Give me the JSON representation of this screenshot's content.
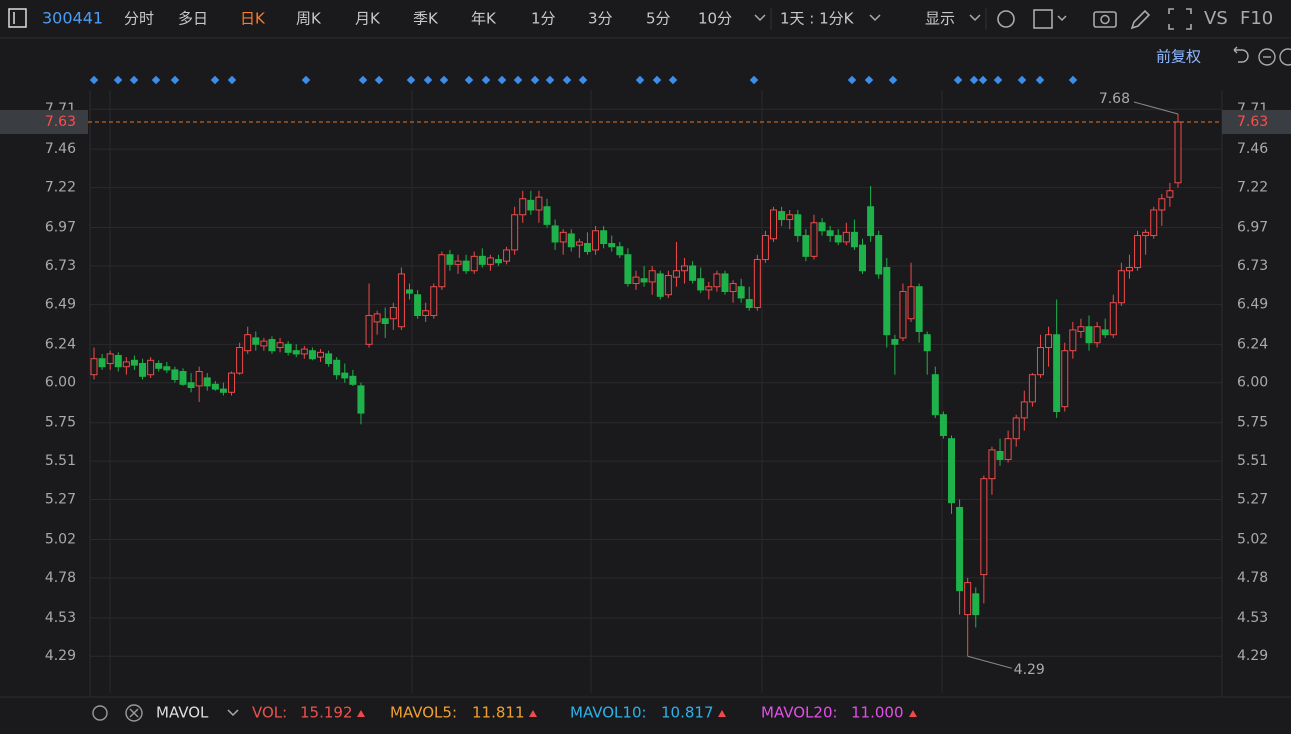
{
  "toolbar": {
    "code": "300441",
    "tabs": [
      "分时",
      "多日",
      "日K",
      "周K",
      "月K",
      "季K",
      "年K",
      "1分",
      "3分",
      "5分",
      "10分"
    ],
    "active": 2,
    "period": "1天 : 1分K",
    "display": "显示",
    "vs": "VS",
    "f10": "F10",
    "adjust": "前复权"
  },
  "chart_data": {
    "type": "candlestick",
    "up_color": "#f04a4a",
    "down_color": "#1fb24a",
    "open": [
      6.05,
      6.15,
      6.12,
      6.17,
      6.1,
      6.14,
      6.12,
      6.05,
      6.12,
      6.1,
      6.08,
      6.07,
      6.0,
      5.98,
      6.03,
      5.99,
      5.96,
      5.94,
      6.06,
      6.2,
      6.28,
      6.23,
      6.27,
      6.22,
      6.24,
      6.2,
      6.18,
      6.2,
      6.16,
      6.18,
      6.14,
      6.06,
      6.04,
      5.98,
      6.24,
      6.38,
      6.4,
      6.4,
      6.35,
      6.58,
      6.55,
      6.42,
      6.42,
      6.6,
      6.8,
      6.74,
      6.76,
      6.7,
      6.79,
      6.74,
      6.77,
      6.76,
      6.83,
      7.05,
      7.14,
      7.08,
      7.1,
      6.98,
      6.88,
      6.93,
      6.86,
      6.87,
      6.83,
      6.95,
      6.87,
      6.85,
      6.8,
      6.62,
      6.65,
      6.63,
      6.68,
      6.55,
      6.66,
      6.7,
      6.73,
      6.65,
      6.58,
      6.6,
      6.68,
      6.57,
      6.6,
      6.52,
      6.47,
      6.77,
      6.9,
      7.07,
      7.02,
      7.05,
      6.92,
      6.79,
      7.0,
      6.95,
      6.92,
      6.88,
      6.94,
      6.86,
      7.1,
      6.92,
      6.72,
      6.27,
      6.28,
      6.4,
      6.6,
      6.3,
      6.05,
      5.8,
      5.65,
      5.22,
      4.55,
      4.68,
      4.8,
      5.4,
      5.57,
      5.52,
      5.65,
      5.78,
      5.88,
      6.05,
      6.22,
      6.3,
      5.85,
      6.2,
      6.32,
      6.35,
      6.25,
      6.33,
      6.3,
      6.5,
      6.7,
      6.72,
      6.92,
      6.92,
      7.08,
      7.16,
      7.25
    ],
    "high": [
      6.22,
      6.18,
      6.2,
      6.19,
      6.16,
      6.17,
      6.15,
      6.16,
      6.14,
      6.13,
      6.1,
      6.09,
      6.06,
      6.1,
      6.06,
      6.01,
      6.0,
      6.07,
      6.25,
      6.35,
      6.32,
      6.28,
      6.29,
      6.28,
      6.26,
      6.24,
      6.23,
      6.22,
      6.21,
      6.2,
      6.16,
      6.12,
      6.08,
      6.0,
      6.62,
      6.45,
      6.47,
      6.5,
      6.72,
      6.62,
      6.58,
      6.5,
      6.62,
      6.82,
      6.83,
      6.8,
      6.8,
      6.82,
      6.84,
      6.8,
      6.8,
      6.85,
      7.1,
      7.2,
      7.2,
      7.2,
      7.15,
      7.02,
      6.96,
      6.96,
      6.9,
      6.94,
      6.98,
      6.98,
      6.92,
      6.88,
      6.84,
      6.7,
      6.73,
      6.73,
      6.7,
      6.7,
      6.88,
      6.78,
      6.76,
      6.72,
      6.63,
      6.7,
      6.7,
      6.64,
      6.65,
      6.6,
      6.8,
      6.95,
      7.1,
      7.1,
      7.08,
      7.08,
      6.96,
      7.05,
      7.03,
      6.98,
      6.96,
      7.0,
      7.02,
      6.9,
      7.23,
      6.95,
      6.78,
      6.3,
      6.62,
      6.75,
      6.62,
      6.32,
      6.1,
      5.82,
      5.67,
      5.27,
      4.78,
      4.72,
      5.42,
      5.6,
      5.65,
      5.7,
      5.8,
      5.95,
      6.06,
      6.3,
      6.35,
      6.52,
      6.25,
      6.38,
      6.4,
      6.42,
      6.38,
      6.4,
      6.55,
      6.75,
      6.8,
      6.95,
      6.96,
      7.1,
      7.18,
      7.25,
      7.68
    ],
    "low": [
      6.02,
      6.08,
      6.08,
      6.07,
      6.05,
      6.08,
      6.02,
      6.03,
      6.07,
      6.06,
      6.0,
      5.98,
      5.94,
      5.88,
      5.95,
      5.95,
      5.92,
      5.92,
      6.05,
      6.18,
      6.2,
      6.2,
      6.18,
      6.19,
      6.17,
      6.16,
      6.15,
      6.14,
      6.13,
      6.1,
      6.02,
      6.0,
      5.98,
      5.74,
      6.22,
      6.3,
      6.28,
      6.33,
      6.33,
      6.52,
      6.4,
      6.38,
      6.4,
      6.58,
      6.7,
      6.68,
      6.68,
      6.68,
      6.72,
      6.7,
      6.73,
      6.74,
      6.8,
      7.0,
      7.05,
      7.0,
      6.97,
      6.83,
      6.8,
      6.82,
      6.78,
      6.8,
      6.8,
      6.84,
      6.82,
      6.78,
      6.6,
      6.58,
      6.6,
      6.55,
      6.52,
      6.53,
      6.6,
      6.62,
      6.62,
      6.56,
      6.52,
      6.57,
      6.55,
      6.5,
      6.5,
      6.45,
      6.45,
      6.75,
      6.88,
      6.98,
      6.96,
      6.88,
      6.76,
      6.77,
      6.92,
      6.88,
      6.86,
      6.86,
      6.83,
      6.68,
      6.88,
      6.65,
      6.22,
      6.05,
      6.26,
      6.38,
      6.25,
      6.05,
      5.78,
      5.65,
      5.18,
      4.55,
      4.29,
      4.47,
      4.62,
      5.3,
      5.48,
      5.5,
      5.6,
      5.7,
      5.85,
      6.03,
      6.1,
      5.78,
      5.82,
      6.15,
      6.28,
      6.2,
      6.22,
      6.28,
      6.28,
      6.48,
      6.65,
      6.7,
      6.8,
      6.9,
      6.98,
      7.1,
      7.22
    ],
    "close": [
      6.15,
      6.1,
      6.18,
      6.1,
      6.13,
      6.11,
      6.04,
      6.14,
      6.09,
      6.08,
      6.02,
      5.99,
      5.97,
      6.07,
      5.98,
      5.96,
      5.94,
      6.06,
      6.22,
      6.3,
      6.24,
      6.26,
      6.2,
      6.25,
      6.19,
      6.18,
      6.21,
      6.15,
      6.19,
      6.12,
      6.05,
      6.03,
      5.99,
      5.81,
      6.42,
      6.43,
      6.37,
      6.47,
      6.68,
      6.56,
      6.42,
      6.45,
      6.6,
      6.8,
      6.74,
      6.76,
      6.7,
      6.79,
      6.74,
      6.78,
      6.75,
      6.83,
      7.05,
      7.15,
      7.08,
      7.16,
      6.99,
      6.88,
      6.94,
      6.85,
      6.88,
      6.82,
      6.95,
      6.87,
      6.85,
      6.8,
      6.62,
      6.66,
      6.63,
      6.7,
      6.54,
      6.67,
      6.7,
      6.73,
      6.64,
      6.58,
      6.6,
      6.68,
      6.57,
      6.62,
      6.53,
      6.47,
      6.77,
      6.92,
      7.08,
      7.02,
      7.05,
      6.92,
      6.79,
      7.0,
      6.95,
      6.92,
      6.88,
      6.94,
      6.85,
      6.7,
      6.92,
      6.68,
      6.3,
      6.24,
      6.57,
      6.6,
      6.32,
      6.2,
      5.8,
      5.67,
      5.25,
      4.7,
      4.75,
      4.55,
      5.4,
      5.58,
      5.52,
      5.65,
      5.78,
      5.88,
      6.05,
      6.22,
      6.3,
      5.82,
      6.2,
      6.33,
      6.35,
      6.25,
      6.35,
      6.3,
      6.5,
      6.7,
      6.72,
      6.92,
      6.94,
      7.08,
      7.15,
      7.2,
      7.63
    ],
    "ylim": [
      4.06,
      7.83
    ],
    "yticks": [
      7.71,
      7.46,
      7.22,
      6.97,
      6.73,
      6.49,
      6.24,
      {
        "value": 6,
        "label": "6.00"
      },
      5.75,
      5.51,
      5.27,
      5.02,
      4.78,
      4.53,
      4.29
    ],
    "grid": true
  },
  "indicator": {
    "name": "MAVOL",
    "items": [
      {
        "label": "VOL:",
        "value": "15.192",
        "color": "#f0504a"
      },
      {
        "label": "MAVOL5:",
        "value": "11.811",
        "color": "#f0a030"
      },
      {
        "label": "MAVOL10:",
        "value": "10.817",
        "color": "#2cb3e8"
      },
      {
        "label": "MAVOL20:",
        "value": "11.000",
        "color": "#e050e6"
      }
    ]
  }
}
